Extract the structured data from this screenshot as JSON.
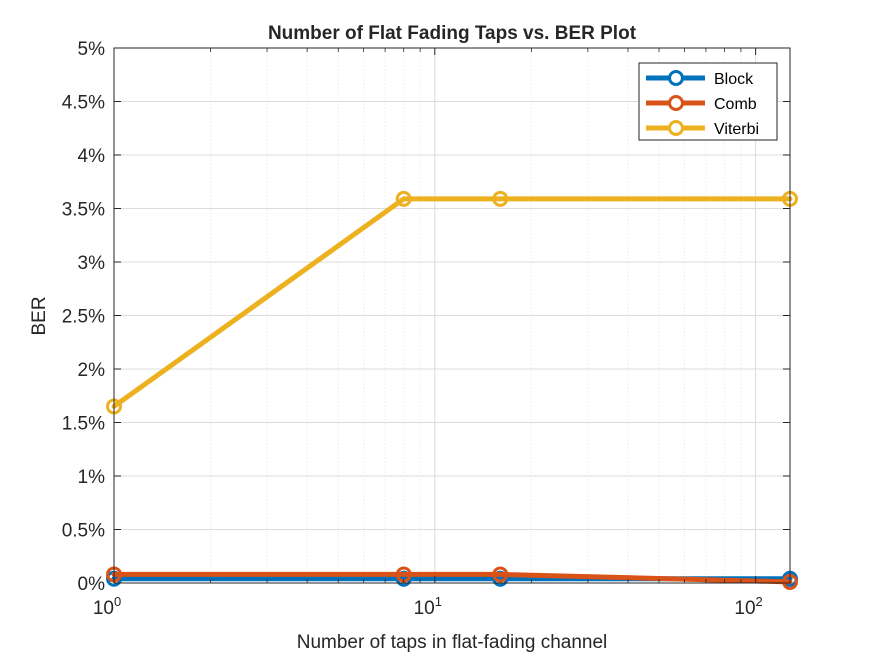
{
  "chart_data": {
    "type": "line",
    "title": "Number of Flat Fading Taps vs. BER Plot",
    "xlabel": "Number of taps in flat-fading channel",
    "ylabel": "BER",
    "x_scale": "log",
    "xlim": [
      1,
      128
    ],
    "ylim": [
      0,
      0.05
    ],
    "x_ticks": [
      {
        "value": 1,
        "base": "10",
        "exp": "0"
      },
      {
        "value": 10,
        "base": "10",
        "exp": "1"
      },
      {
        "value": 100,
        "base": "10",
        "exp": "2"
      }
    ],
    "y_ticks": [
      {
        "value": 0,
        "label": "0%"
      },
      {
        "value": 0.005,
        "label": "0.5%"
      },
      {
        "value": 0.01,
        "label": "1%"
      },
      {
        "value": 0.015,
        "label": "1.5%"
      },
      {
        "value": 0.02,
        "label": "2%"
      },
      {
        "value": 0.025,
        "label": "2.5%"
      },
      {
        "value": 0.03,
        "label": "3%"
      },
      {
        "value": 0.035,
        "label": "3.5%"
      },
      {
        "value": 0.04,
        "label": "4%"
      },
      {
        "value": 0.045,
        "label": "4.5%"
      },
      {
        "value": 0.05,
        "label": "5%"
      }
    ],
    "grid": true,
    "minor_grid": true,
    "legend_position": "top-right",
    "series": [
      {
        "name": "Block",
        "color": "#0072BD",
        "x": [
          1,
          8,
          16,
          128
        ],
        "y": [
          0.0004,
          0.0004,
          0.0004,
          0.0004
        ]
      },
      {
        "name": "Comb",
        "color": "#D95319",
        "x": [
          1,
          8,
          16,
          128
        ],
        "y": [
          0.0008,
          0.0008,
          0.0008,
          0.0001
        ]
      },
      {
        "name": "Viterbi",
        "color": "#EDB120",
        "x": [
          1,
          8,
          16,
          128
        ],
        "y": [
          0.0165,
          0.0359,
          0.0359,
          0.0359
        ]
      }
    ]
  }
}
